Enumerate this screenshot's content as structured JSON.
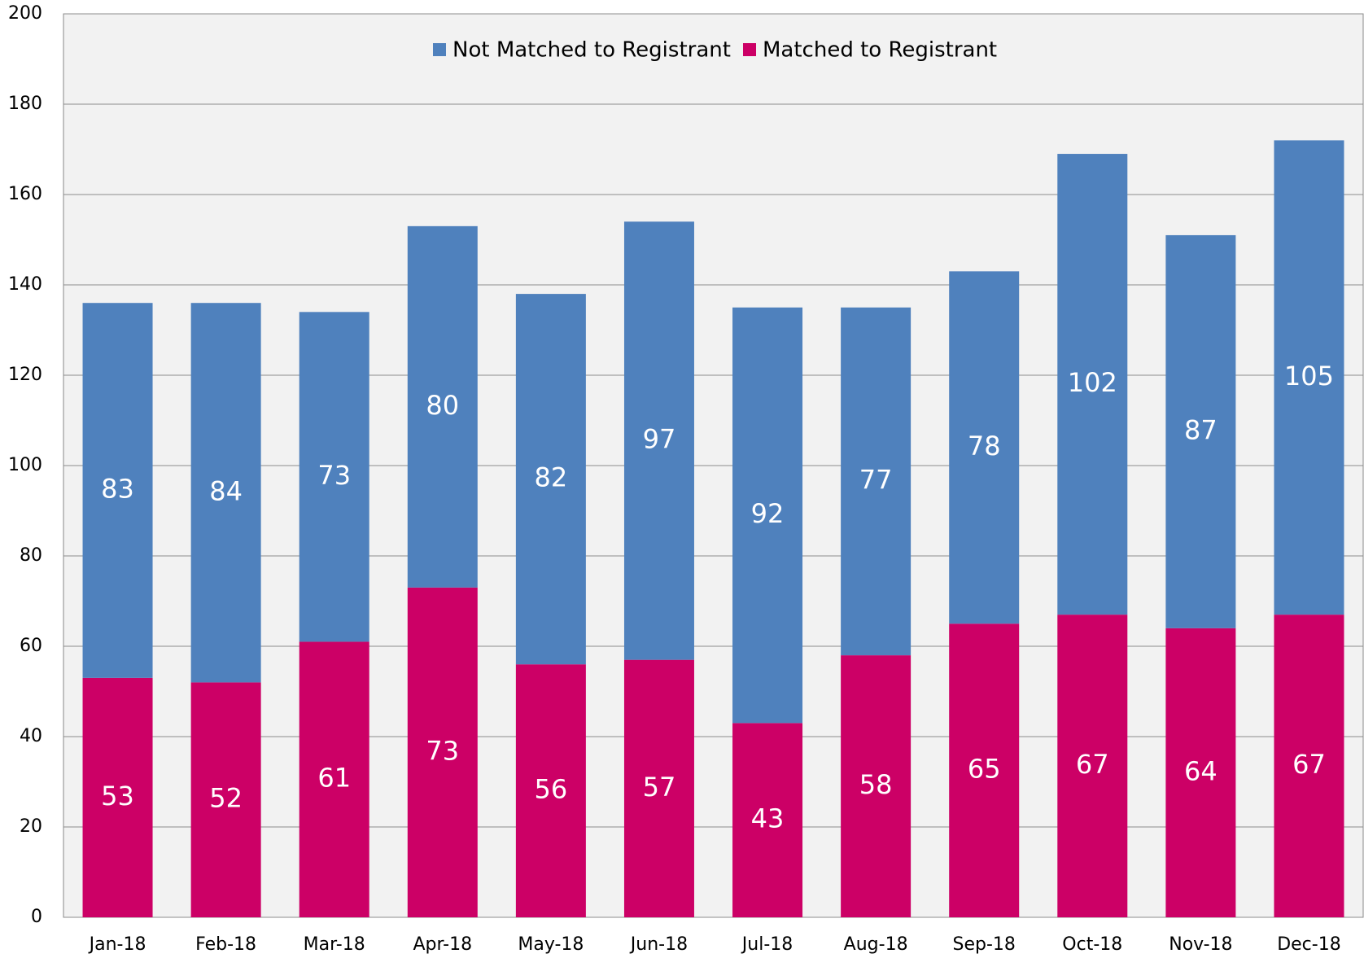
{
  "chart_data": {
    "type": "stacked_bar",
    "categories": [
      "Jan-18",
      "Feb-18",
      "Mar-18",
      "Apr-18",
      "May-18",
      "Jun-18",
      "Jul-18",
      "Aug-18",
      "Sep-18",
      "Oct-18",
      "Nov-18",
      "Dec-18"
    ],
    "series": [
      {
        "name": "Not Matched to Registrant",
        "color": "#4f81bd",
        "values": [
          83,
          84,
          73,
          80,
          82,
          97,
          92,
          77,
          78,
          102,
          87,
          105
        ]
      },
      {
        "name": "Matched to Registrant",
        "color": "#cc0066",
        "values": [
          53,
          52,
          61,
          73,
          56,
          57,
          43,
          58,
          65,
          67,
          64,
          67
        ]
      }
    ],
    "ylim": [
      0,
      200
    ],
    "yticks": [
      0,
      20,
      40,
      60,
      80,
      100,
      120,
      140,
      160,
      180,
      200
    ],
    "grid": true,
    "legend": "top"
  }
}
